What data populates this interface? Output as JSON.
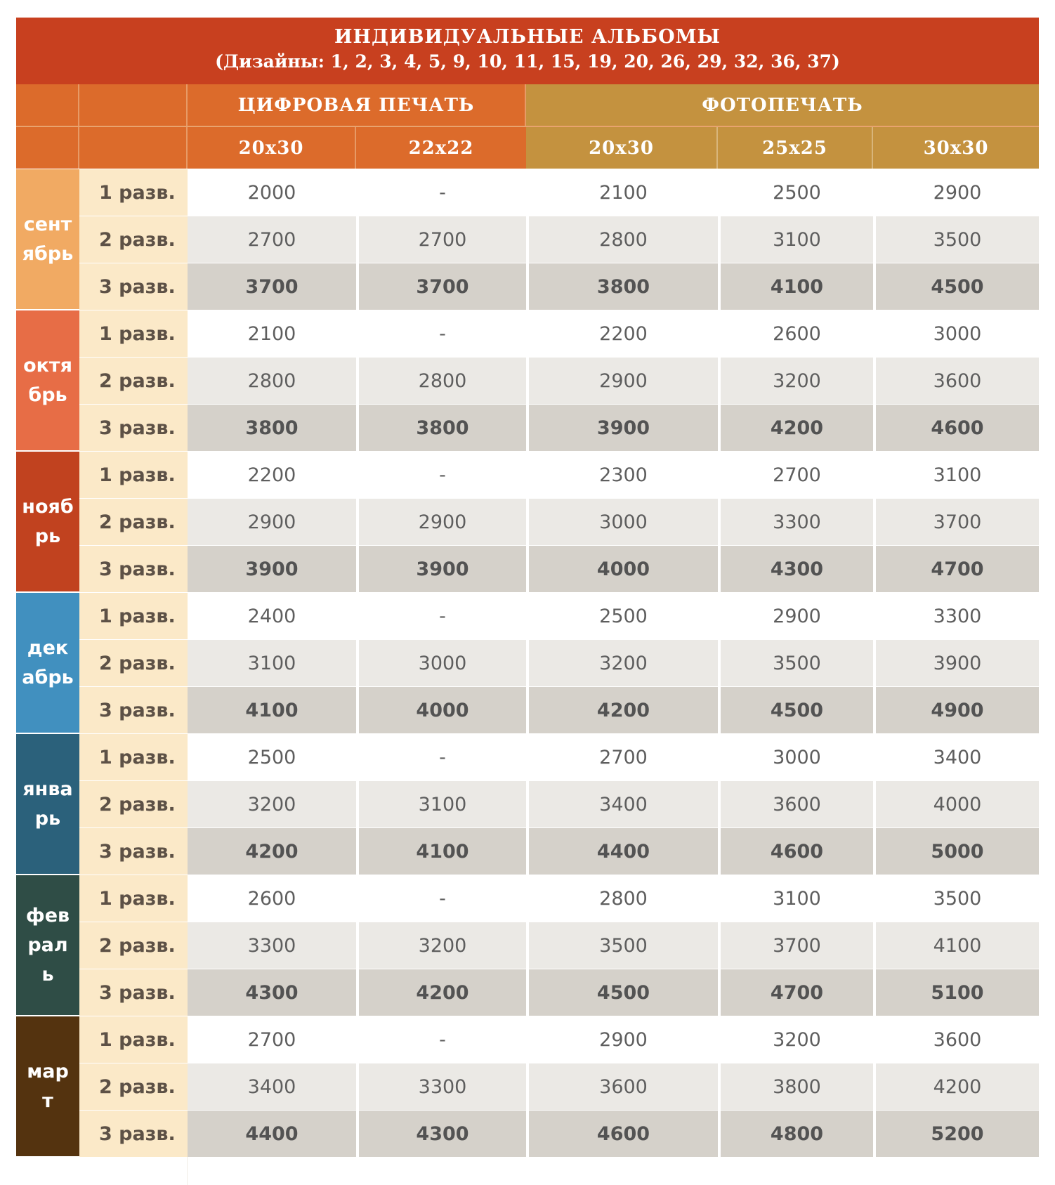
{
  "title": {
    "line1": "ИНДИВИДУАЛЬНЫЕ АЛЬБОМЫ",
    "line2": "(Дизайны: 1, 2, 3, 4, 5, 9, 10, 11, 15, 19, 20, 26, 29, 32, 36, 37)"
  },
  "header": {
    "digital": "ЦИФРОВАЯ ПЕЧАТЬ",
    "photo": "ФОТОПЕЧАТЬ",
    "sizes": [
      "20x30",
      "22x22",
      "20x30",
      "25x25",
      "30x30"
    ]
  },
  "colors": {
    "title_bg": "#c8401f",
    "digital_bg": "#dc6b2b",
    "photo_bg": "#c4923f",
    "spread_bg": "#fbe9c8"
  },
  "months": [
    {
      "name": "сентябрь",
      "color": "#f1aa63",
      "rows": [
        {
          "spread": "1 разв.",
          "prices": [
            "2000",
            "-",
            "2100",
            "2500",
            "2900"
          ]
        },
        {
          "spread": "2 разв.",
          "prices": [
            "2700",
            "2700",
            "2800",
            "3100",
            "3500"
          ]
        },
        {
          "spread": "3 разв.",
          "prices": [
            "3700",
            "3700",
            "3800",
            "4100",
            "4500"
          ]
        }
      ]
    },
    {
      "name": "октябрь",
      "color": "#e76d46",
      "rows": [
        {
          "spread": "1 разв.",
          "prices": [
            "2100",
            "-",
            "2200",
            "2600",
            "3000"
          ]
        },
        {
          "spread": "2 разв.",
          "prices": [
            "2800",
            "2800",
            "2900",
            "3200",
            "3600"
          ]
        },
        {
          "spread": "3 разв.",
          "prices": [
            "3800",
            "3800",
            "3900",
            "4200",
            "4600"
          ]
        }
      ]
    },
    {
      "name": "ноябрь",
      "color": "#c1421f",
      "rows": [
        {
          "spread": "1 разв.",
          "prices": [
            "2200",
            "-",
            "2300",
            "2700",
            "3100"
          ]
        },
        {
          "spread": "2 разв.",
          "prices": [
            "2900",
            "2900",
            "3000",
            "3300",
            "3700"
          ]
        },
        {
          "spread": "3 разв.",
          "prices": [
            "3900",
            "3900",
            "4000",
            "4300",
            "4700"
          ]
        }
      ]
    },
    {
      "name": "декабрь",
      "color": "#4190bf",
      "rows": [
        {
          "spread": "1 разв.",
          "prices": [
            "2400",
            "-",
            "2500",
            "2900",
            "3300"
          ]
        },
        {
          "spread": "2 разв.",
          "prices": [
            "3100",
            "3000",
            "3200",
            "3500",
            "3900"
          ]
        },
        {
          "spread": "3 разв.",
          "prices": [
            "4100",
            "4000",
            "4200",
            "4500",
            "4900"
          ]
        }
      ]
    },
    {
      "name": "январь",
      "color": "#2b617b",
      "rows": [
        {
          "spread": "1 разв.",
          "prices": [
            "2500",
            "-",
            "2700",
            "3000",
            "3400"
          ]
        },
        {
          "spread": "2 разв.",
          "prices": [
            "3200",
            "3100",
            "3400",
            "3600",
            "4000"
          ]
        },
        {
          "spread": "3 разв.",
          "prices": [
            "4200",
            "4100",
            "4400",
            "4600",
            "5000"
          ]
        }
      ]
    },
    {
      "name": "февраль",
      "color": "#2f4d46",
      "rows": [
        {
          "spread": "1 разв.",
          "prices": [
            "2600",
            "-",
            "2800",
            "3100",
            "3500"
          ]
        },
        {
          "spread": "2 разв.",
          "prices": [
            "3300",
            "3200",
            "3500",
            "3700",
            "4100"
          ]
        },
        {
          "spread": "3 разв.",
          "prices": [
            "4300",
            "4200",
            "4500",
            "4700",
            "5100"
          ]
        }
      ]
    },
    {
      "name": "март",
      "color": "#54330f",
      "rows": [
        {
          "spread": "1 разв.",
          "prices": [
            "2700",
            "-",
            "2900",
            "3200",
            "3600"
          ]
        },
        {
          "spread": "2 разв.",
          "prices": [
            "3400",
            "3300",
            "3600",
            "3800",
            "4200"
          ]
        },
        {
          "spread": "3 разв.",
          "prices": [
            "4400",
            "4300",
            "4600",
            "4800",
            "5200"
          ]
        }
      ]
    }
  ]
}
